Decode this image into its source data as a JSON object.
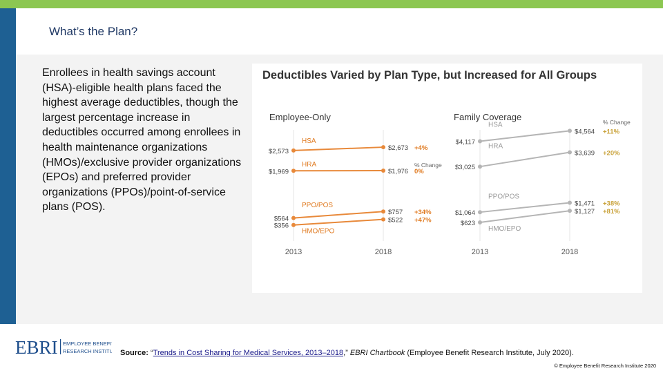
{
  "slide": {
    "title": "What’s the Plan?",
    "body": "Enrollees in health savings account (HSA)-eligible health plans faced the highest average deductibles, though the largest percentage increase in deductibles occurred among enrollees in health maintenance organizations (HMOs)/exclusive provider organizations (EPOs) and preferred provider organizations (PPOs)/point-of-service plans (POS)."
  },
  "chart_title": "Deductibles Varied by Plan Type, but Increased for All Groups",
  "chart_data": [
    {
      "type": "line",
      "title": "Employee-Only",
      "x": [
        "2013",
        "2018"
      ],
      "change_header": "% Change",
      "ylim": [
        0,
        3600
      ],
      "series": [
        {
          "name": "HSA",
          "values": [
            2573,
            2673
          ],
          "labels": [
            "$2,573",
            "$2,673"
          ],
          "change": "+4%"
        },
        {
          "name": "HRA",
          "values": [
            1969,
            1976
          ],
          "labels": [
            "$1,969",
            "$1,976"
          ],
          "change": "0%"
        },
        {
          "name": "PPO/POS",
          "values": [
            564,
            757
          ],
          "labels": [
            "$564",
            "$757"
          ],
          "change": "+34%"
        },
        {
          "name": "HMO/EPO",
          "values": [
            356,
            522
          ],
          "labels": [
            "$356",
            "$522"
          ],
          "change": "+47%"
        }
      ]
    },
    {
      "type": "line",
      "title": "Family Coverage",
      "x": [
        "2013",
        "2018"
      ],
      "change_header": "% Change",
      "ylim": [
        0,
        5200
      ],
      "series": [
        {
          "name": "HSA",
          "values": [
            4117,
            4564
          ],
          "labels": [
            "$4,117",
            "$4,564"
          ],
          "change": "+11%"
        },
        {
          "name": "HRA",
          "values": [
            3025,
            3639
          ],
          "labels": [
            "$3,025",
            "$3,639"
          ],
          "change": "+20%"
        },
        {
          "name": "PPO/POS",
          "values": [
            1064,
            1471
          ],
          "labels": [
            "$1,064",
            "$1,471"
          ],
          "change": "+38%"
        },
        {
          "name": "HMO/EPO",
          "values": [
            623,
            1127
          ],
          "labels": [
            "$623",
            "$1,127"
          ],
          "change": "+81%"
        }
      ]
    }
  ],
  "colors": {
    "top_bar": "#8cc751",
    "left_bar": "#1e6093",
    "employee_series": "#e8893a",
    "family_series": "#b5b5b5",
    "change_text": "#e07b22"
  },
  "footer": {
    "logo_main": "EBRI",
    "logo_sub1": "EMPLOYEE BENEFIT",
    "logo_sub2": "RESEARCH INSTITUTE",
    "source_label": "Source:",
    "source_open_quote": " “",
    "source_link": "Trends in Cost Sharing for Medical Services, 2013–2018",
    "source_close_quote": ",” ",
    "source_publication": "EBRI Chartbook",
    "source_rest": " (Employee Benefit Research Institute, July 2020).",
    "copyright": "© Employee Benefit Research Institute 2020"
  }
}
